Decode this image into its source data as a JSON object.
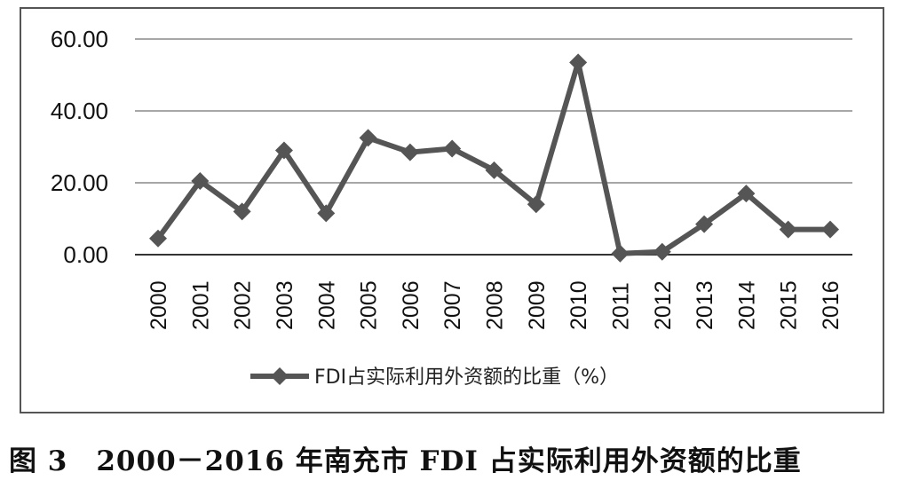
{
  "chart_data": {
    "type": "line",
    "categories": [
      "2000",
      "2001",
      "2002",
      "2003",
      "2004",
      "2005",
      "2006",
      "2007",
      "2008",
      "2009",
      "2010",
      "2011",
      "2012",
      "2013",
      "2014",
      "2015",
      "2016"
    ],
    "series": [
      {
        "name": "FDI占实际利用外资额的比重（%）",
        "values": [
          4.5,
          20.5,
          12.0,
          29.0,
          11.5,
          32.5,
          28.5,
          29.5,
          23.5,
          14.0,
          53.5,
          0.3,
          0.8,
          8.5,
          17.0,
          7.0,
          7.0
        ],
        "color": "#555555"
      }
    ],
    "yticks": [
      "0.00",
      "20.00",
      "40.00",
      "60.00"
    ],
    "ylim": [
      0,
      60
    ],
    "grid": true,
    "legend_position": "bottom"
  },
  "caption": "图 3　2000－2016 年南充市 FDI 占实际利用外资额的比重"
}
